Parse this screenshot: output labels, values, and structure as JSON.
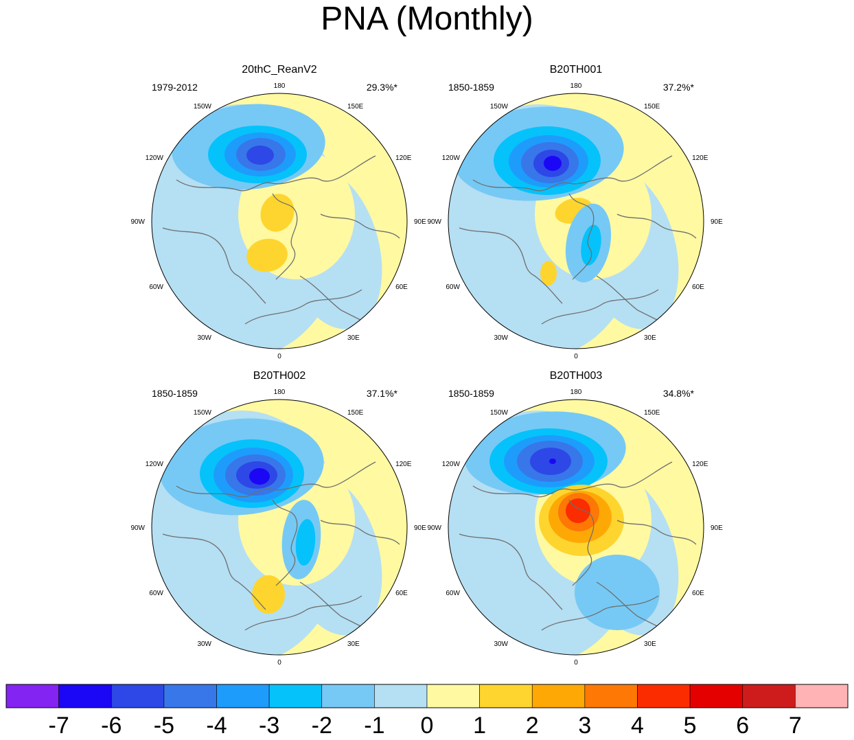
{
  "title": "PNA (Monthly)",
  "chart_data": {
    "type": "polar-stereographic-contour-map",
    "variable": "PNA pattern (monthly)",
    "projection": "North polar stereographic",
    "longitude_labels": [
      "180",
      "150E",
      "120E",
      "90E",
      "60E",
      "30E",
      "0",
      "30W",
      "60W",
      "90W",
      "120W",
      "150W"
    ],
    "panels": [
      {
        "name": "20thC_ReanV2",
        "period": "1979-2012",
        "variance_explained": "29.3%*",
        "extrema": {
          "min": -5,
          "max": 1
        }
      },
      {
        "name": "B20TH001",
        "period": "1850-1859",
        "variance_explained": "37.2%*",
        "extrema": {
          "min": -6,
          "max": 1
        }
      },
      {
        "name": "B20TH002",
        "period": "1850-1859",
        "variance_explained": "37.1%*",
        "extrema": {
          "min": -6,
          "max": 1
        }
      },
      {
        "name": "B20TH003",
        "period": "1850-1859",
        "variance_explained": "34.8%*",
        "extrema": {
          "min": -6,
          "max": 4
        }
      }
    ],
    "colorbar": {
      "labels": [
        "-7",
        "-6",
        "-5",
        "-4",
        "-3",
        "-2",
        "-1",
        "0",
        "1",
        "2",
        "3",
        "4",
        "5",
        "6",
        "7"
      ],
      "colors": [
        "#8424f2",
        "#1b07f5",
        "#2d48e6",
        "#3777ea",
        "#1e9cfc",
        "#05c2fb",
        "#76c9f4",
        "#b5dff3",
        "#fff9a2",
        "#fed52e",
        "#fea806",
        "#fd7805",
        "#fb2c00",
        "#e50000",
        "#ce1c1c",
        "#ffb3b4"
      ]
    }
  }
}
